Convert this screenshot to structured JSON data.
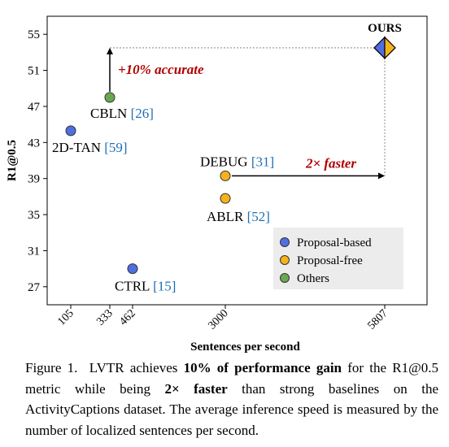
{
  "chart_data": {
    "type": "scatter",
    "xlabel": "Sentences per second",
    "ylabel": "R1@0.5",
    "x_ticks": [
      "105",
      "333",
      "462",
      "3000",
      "5807"
    ],
    "y_ticks": [
      27,
      31,
      35,
      39,
      43,
      47,
      51,
      55
    ],
    "ylim": [
      25,
      57
    ],
    "grid": false,
    "legend_position": "bottom-right",
    "series": [
      {
        "name": "Proposal-based",
        "color": "#4f6fe0"
      },
      {
        "name": "Proposal-free",
        "color": "#f5b21a"
      },
      {
        "name": "Others",
        "color": "#6aa84f"
      }
    ],
    "points": [
      {
        "label": "2D-TAN",
        "ref": "[59]",
        "x": "105",
        "y": 44.3,
        "series": "Proposal-based"
      },
      {
        "label": "CBLN",
        "ref": "[26]",
        "x": "333",
        "y": 48.0,
        "series": "Others"
      },
      {
        "label": "CTRL",
        "ref": "[15]",
        "x": "462",
        "y": 29.0,
        "series": "Proposal-based"
      },
      {
        "label": "DEBUG",
        "ref": "[31]",
        "x": "3000",
        "y": 39.3,
        "series": "Proposal-free"
      },
      {
        "label": "ABLR",
        "ref": "[52]",
        "x": "3000",
        "y": 36.8,
        "series": "Proposal-free"
      },
      {
        "label": "OURS",
        "ref": "",
        "x": "5807",
        "y": 53.5,
        "series": "Ours"
      }
    ],
    "annotations": {
      "accuracy": "+10% accurate",
      "speed": "2× faster"
    }
  },
  "colors": {
    "ref": "#1f6fb2",
    "annotation": "#b00000",
    "legend_bg": "#ececec"
  },
  "caption": {
    "prefix": "Figure 1.",
    "name": "LVTR",
    "t1": " achieves ",
    "b1": "10% of performance gain",
    "t2": " for the R1@0.5 metric while being ",
    "b2": "2× faster",
    "t3": " than strong baselines on the ActivityCaptions dataset. The average inference speed is measured by the number of localized sentences per second."
  }
}
